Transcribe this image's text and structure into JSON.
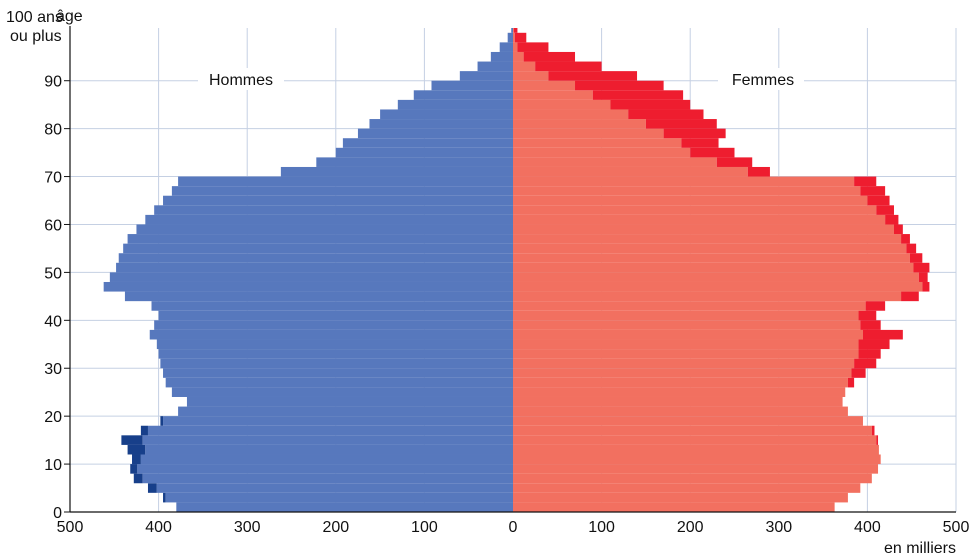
{
  "chart_data": {
    "type": "population-pyramid",
    "left_label": "Hommes",
    "right_label": "Femmes",
    "y_axis_label": "âge",
    "y_top_label": [
      "100 ans",
      "ou plus"
    ],
    "x_unit_label": "en milliers",
    "x_ticks": [
      500,
      400,
      300,
      200,
      100,
      0,
      100,
      200,
      300,
      400,
      500
    ],
    "y_ticks": [
      0,
      10,
      20,
      30,
      40,
      50,
      60,
      70,
      80,
      90
    ],
    "xlim": [
      -500,
      500
    ],
    "ylim": [
      0,
      101
    ],
    "grid": true,
    "colors": {
      "men": "#5778bd",
      "men_excess": "#173f8a",
      "women": "#f27060",
      "women_excess": "#ee1d2f",
      "grid": "#c5d0e3"
    },
    "age_bins": {
      "ages": [
        0,
        2,
        4,
        6,
        8,
        10,
        12,
        14,
        16,
        18,
        20,
        22,
        24,
        26,
        28,
        30,
        32,
        34,
        36,
        38,
        40,
        42,
        44,
        46,
        48,
        50,
        52,
        54,
        56,
        58,
        60,
        62,
        64,
        66,
        68,
        70,
        72,
        74,
        76,
        78,
        80,
        82,
        84,
        86,
        88,
        90,
        92,
        94,
        96,
        98,
        100
      ],
      "men": [
        380,
        392,
        402,
        418,
        424,
        420,
        415,
        418,
        412,
        395,
        378,
        368,
        385,
        392,
        395,
        398,
        400,
        402,
        410,
        405,
        400,
        408,
        438,
        462,
        455,
        448,
        445,
        440,
        435,
        425,
        415,
        405,
        395,
        385,
        378,
        262,
        222,
        200,
        192,
        175,
        162,
        150,
        130,
        112,
        92,
        60,
        40,
        25,
        15,
        6,
        2
      ],
      "women": [
        363,
        378,
        392,
        405,
        412,
        415,
        413,
        410,
        405,
        395,
        378,
        372,
        375,
        378,
        382,
        385,
        390,
        390,
        395,
        392,
        390,
        398,
        438,
        462,
        458,
        452,
        448,
        444,
        438,
        430,
        420,
        410,
        400,
        392,
        385,
        265,
        230,
        200,
        190,
        170,
        150,
        130,
        110,
        90,
        70,
        40,
        25,
        12,
        5,
        2,
        1
      ],
      "women_total": [
        363,
        378,
        392,
        405,
        412,
        415,
        413,
        412,
        408,
        395,
        378,
        372,
        375,
        385,
        398,
        410,
        415,
        425,
        440,
        415,
        410,
        420,
        458,
        470,
        468,
        470,
        462,
        455,
        448,
        440,
        435,
        430,
        425,
        420,
        410,
        290,
        270,
        250,
        232,
        240,
        230,
        215,
        200,
        192,
        170,
        140,
        100,
        70,
        40,
        15,
        5
      ],
      "men_total": [
        380,
        395,
        412,
        428,
        432,
        430,
        435,
        442,
        420,
        398,
        378,
        368,
        385,
        392,
        395,
        398,
        400,
        402,
        410,
        405,
        400,
        408,
        438,
        462,
        455,
        448,
        445,
        440,
        435,
        425,
        415,
        405,
        395,
        385,
        378,
        262,
        222,
        200,
        192,
        175,
        162,
        150,
        130,
        112,
        92,
        60,
        40,
        25,
        15,
        6,
        2
      ]
    }
  }
}
